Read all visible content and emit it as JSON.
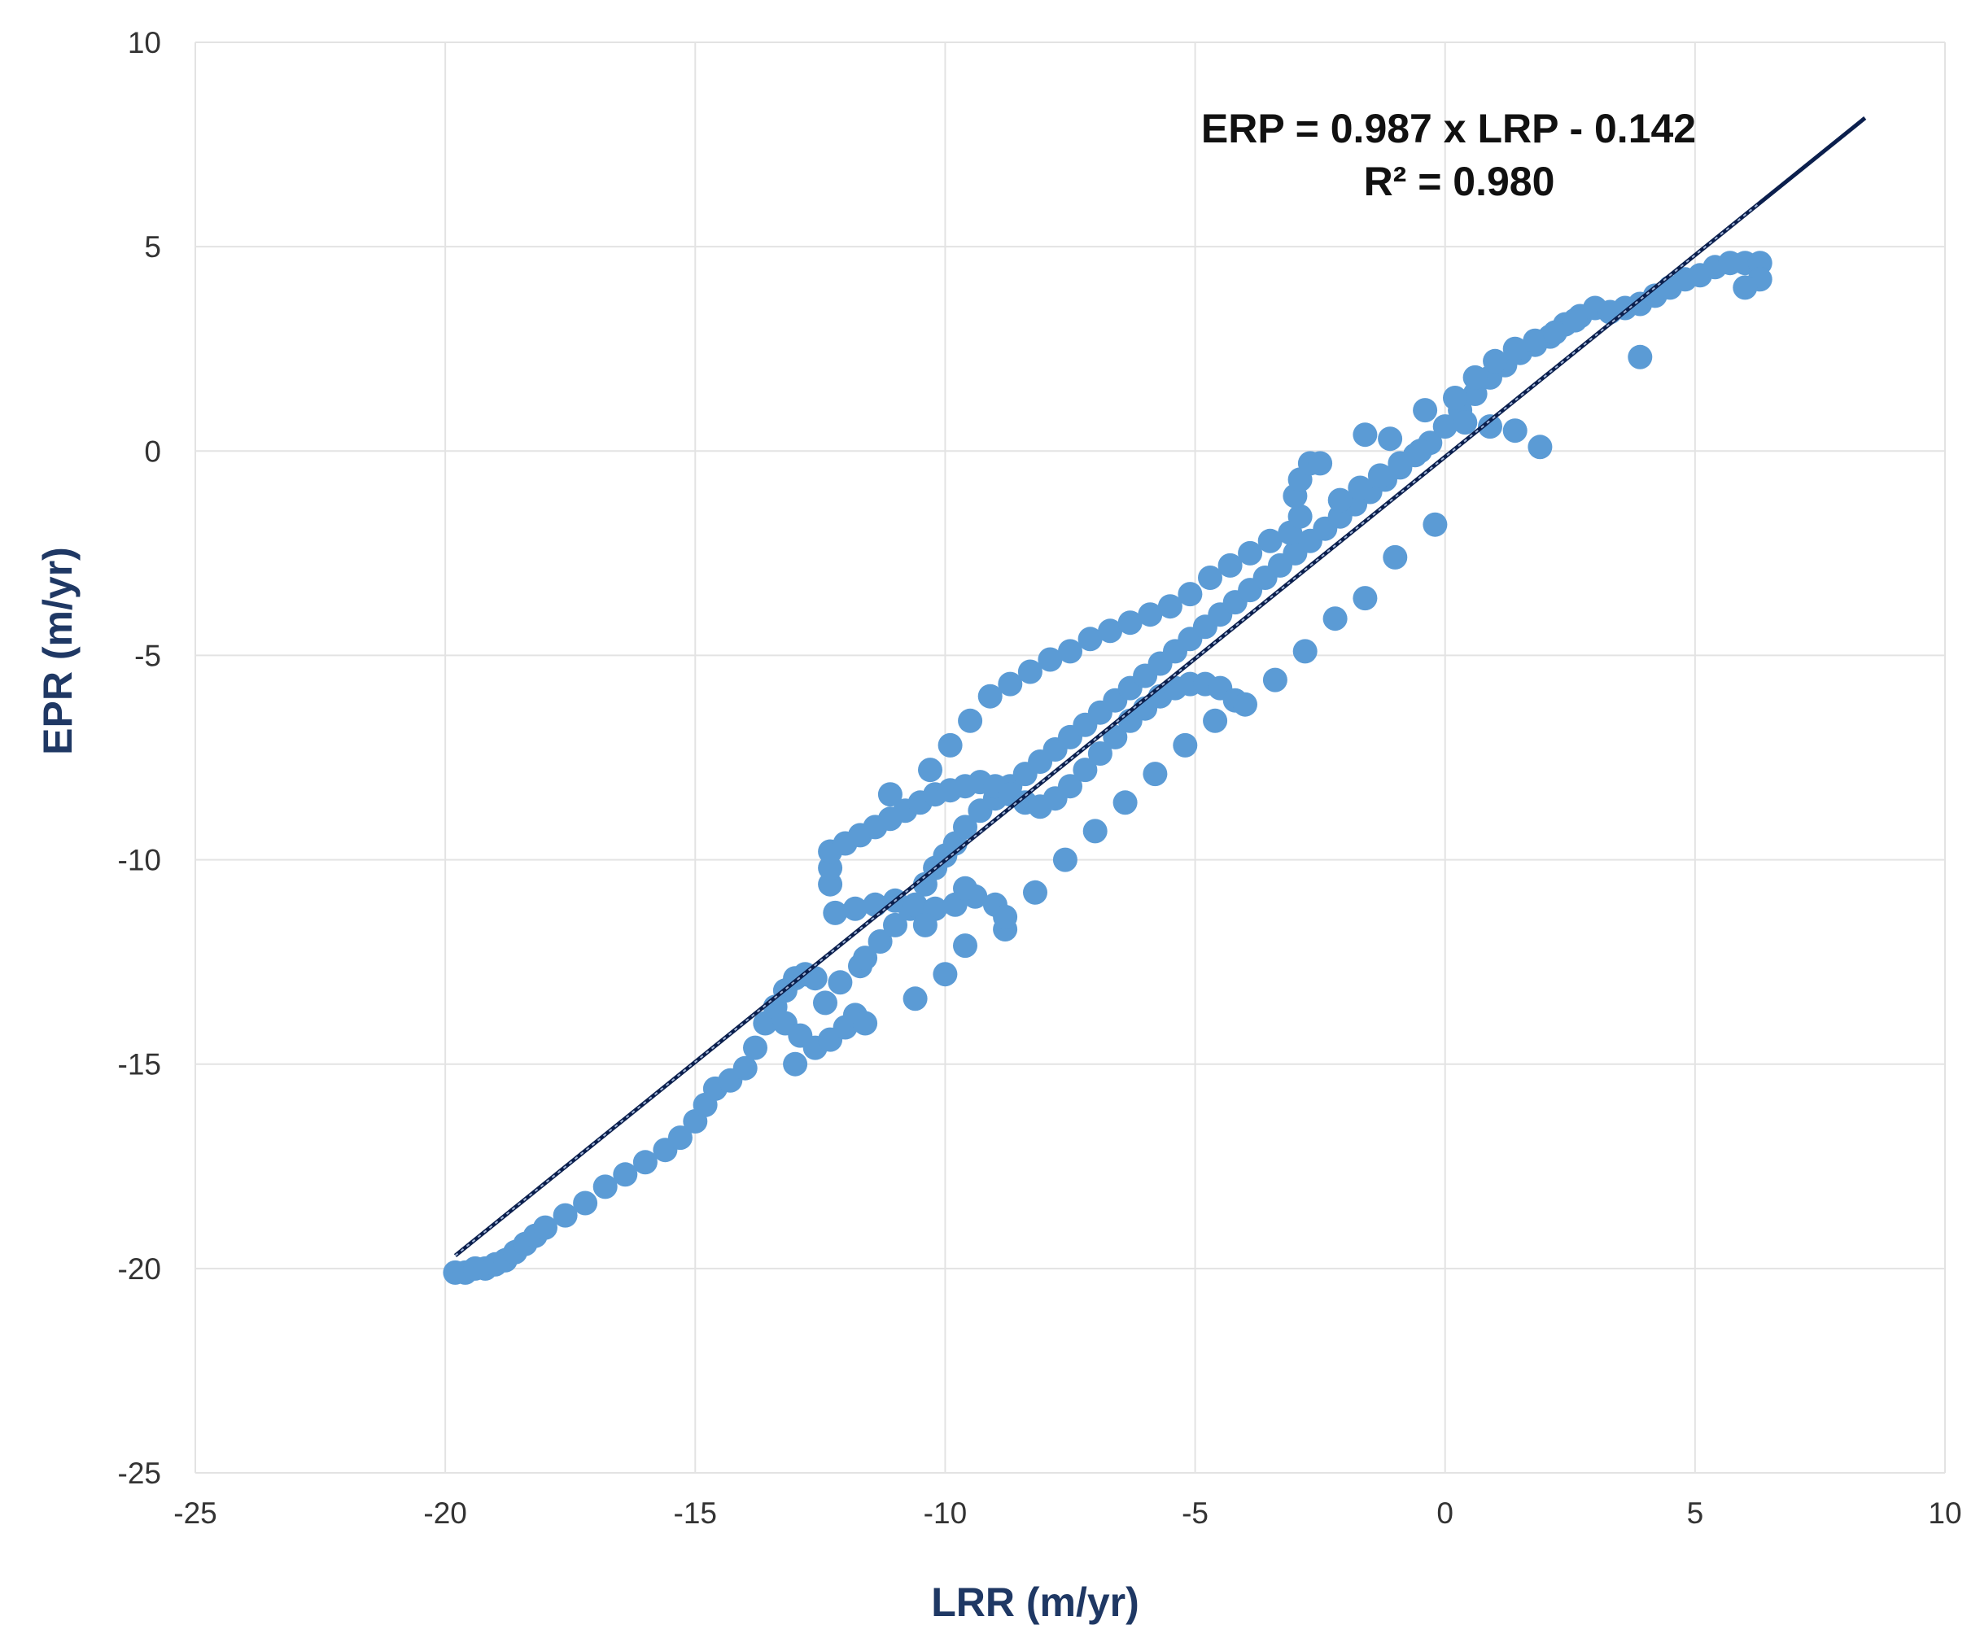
{
  "chart_data": {
    "type": "scatter",
    "title": "",
    "xlabel": "LRR (m/yr)",
    "ylabel": "EPR (m/yr)",
    "xlim": [
      -25,
      10
    ],
    "ylim": [
      -25,
      10
    ],
    "x_ticks": [
      -25,
      -20,
      -15,
      -10,
      -5,
      0,
      5,
      10
    ],
    "y_ticks": [
      -25,
      -20,
      -15,
      -10,
      -5,
      0,
      5,
      10
    ],
    "grid": true,
    "legend": "none",
    "annotation": {
      "equation": "ERP = 0.987 x LRP - 0.142",
      "r_squared": "R² = 0.980"
    },
    "trendline": {
      "slope": 0.987,
      "intercept": -0.142,
      "x_range": [
        -19.8,
        8.4
      ]
    },
    "colors": {
      "points": "#5b9bd5",
      "trendline": "#0b1f4d",
      "axis_title": "#1f3864",
      "grid": "#e3e3e3"
    },
    "series": [
      {
        "values": [
          [
            -19.8,
            -20.1
          ],
          [
            -19.6,
            -20.1
          ],
          [
            -19.4,
            -20.0
          ],
          [
            -19.2,
            -20.0
          ],
          [
            -19.0,
            -19.9
          ],
          [
            -18.8,
            -19.8
          ],
          [
            -18.6,
            -19.6
          ],
          [
            -18.4,
            -19.4
          ],
          [
            -18.2,
            -19.2
          ],
          [
            -18.0,
            -19.0
          ],
          [
            -17.6,
            -18.7
          ],
          [
            -17.2,
            -18.4
          ],
          [
            -16.8,
            -18.0
          ],
          [
            -16.4,
            -17.7
          ],
          [
            -16.0,
            -17.4
          ],
          [
            -15.6,
            -17.1
          ],
          [
            -15.3,
            -16.8
          ],
          [
            -15.0,
            -16.4
          ],
          [
            -14.8,
            -16.0
          ],
          [
            -14.6,
            -15.6
          ],
          [
            -14.3,
            -15.4
          ],
          [
            -14.0,
            -15.1
          ],
          [
            -13.8,
            -14.6
          ],
          [
            -13.6,
            -14.0
          ],
          [
            -13.4,
            -13.6
          ],
          [
            -13.2,
            -13.2
          ],
          [
            -13.0,
            -12.9
          ],
          [
            -12.8,
            -12.8
          ],
          [
            -12.6,
            -12.9
          ],
          [
            -13.2,
            -14.0
          ],
          [
            -12.9,
            -14.3
          ],
          [
            -12.6,
            -14.6
          ],
          [
            -12.3,
            -14.4
          ],
          [
            -12.0,
            -14.1
          ],
          [
            -11.8,
            -13.8
          ],
          [
            -12.4,
            -13.5
          ],
          [
            -12.1,
            -13.0
          ],
          [
            -11.7,
            -12.6
          ],
          [
            -13.0,
            -15.0
          ],
          [
            -11.6,
            -14.0
          ],
          [
            -11.6,
            -12.4
          ],
          [
            -11.3,
            -12.0
          ],
          [
            -11.0,
            -11.6
          ],
          [
            -10.7,
            -11.2
          ],
          [
            -10.4,
            -10.6
          ],
          [
            -10.2,
            -10.2
          ],
          [
            -10.0,
            -9.9
          ],
          [
            -9.8,
            -9.6
          ],
          [
            -9.6,
            -9.2
          ],
          [
            -9.3,
            -8.8
          ],
          [
            -9.0,
            -8.5
          ],
          [
            -8.7,
            -8.2
          ],
          [
            -8.4,
            -7.9
          ],
          [
            -8.1,
            -7.6
          ],
          [
            -7.8,
            -7.3
          ],
          [
            -7.5,
            -7.0
          ],
          [
            -7.2,
            -6.7
          ],
          [
            -6.9,
            -6.4
          ],
          [
            -6.6,
            -6.1
          ],
          [
            -6.3,
            -5.8
          ],
          [
            -6.0,
            -5.5
          ],
          [
            -5.7,
            -5.2
          ],
          [
            -5.4,
            -4.9
          ],
          [
            -5.1,
            -4.6
          ],
          [
            -4.8,
            -4.3
          ],
          [
            -4.5,
            -4.0
          ],
          [
            -4.2,
            -3.7
          ],
          [
            -3.9,
            -3.4
          ],
          [
            -3.6,
            -3.1
          ],
          [
            -3.3,
            -2.8
          ],
          [
            -3.0,
            -2.5
          ],
          [
            -2.7,
            -2.2
          ],
          [
            -2.4,
            -1.9
          ],
          [
            -2.1,
            -1.6
          ],
          [
            -1.8,
            -1.3
          ],
          [
            -1.5,
            -1.0
          ],
          [
            -1.2,
            -0.7
          ],
          [
            -0.9,
            -0.4
          ],
          [
            -0.6,
            -0.1
          ],
          [
            -0.3,
            0.2
          ],
          [
            0.0,
            0.6
          ],
          [
            0.3,
            1.0
          ],
          [
            0.6,
            1.4
          ],
          [
            0.9,
            1.8
          ],
          [
            1.2,
            2.1
          ],
          [
            1.5,
            2.4
          ],
          [
            1.8,
            2.6
          ],
          [
            2.1,
            2.8
          ],
          [
            2.4,
            3.1
          ],
          [
            2.7,
            3.3
          ],
          [
            3.0,
            3.5
          ],
          [
            3.3,
            3.4
          ],
          [
            3.6,
            3.5
          ],
          [
            3.9,
            3.6
          ],
          [
            4.2,
            3.8
          ],
          [
            4.5,
            4.0
          ],
          [
            4.8,
            4.2
          ],
          [
            5.1,
            4.3
          ],
          [
            5.4,
            4.5
          ],
          [
            5.7,
            4.6
          ],
          [
            6.0,
            4.6
          ],
          [
            6.3,
            4.6
          ],
          [
            6.3,
            4.2
          ],
          [
            6.0,
            4.0
          ],
          [
            -12.3,
            -10.6
          ],
          [
            -12.3,
            -10.2
          ],
          [
            -12.3,
            -9.8
          ],
          [
            -12.0,
            -9.6
          ],
          [
            -11.7,
            -9.4
          ],
          [
            -11.4,
            -9.2
          ],
          [
            -11.1,
            -9.0
          ],
          [
            -10.8,
            -8.8
          ],
          [
            -10.5,
            -8.6
          ],
          [
            -10.2,
            -8.4
          ],
          [
            -9.9,
            -8.3
          ],
          [
            -9.6,
            -8.2
          ],
          [
            -9.3,
            -8.1
          ],
          [
            -9.0,
            -8.2
          ],
          [
            -8.7,
            -8.4
          ],
          [
            -8.4,
            -8.6
          ],
          [
            -8.1,
            -8.7
          ],
          [
            -7.8,
            -8.5
          ],
          [
            -7.5,
            -8.2
          ],
          [
            -7.2,
            -7.8
          ],
          [
            -6.9,
            -7.4
          ],
          [
            -6.6,
            -7.0
          ],
          [
            -6.3,
            -6.6
          ],
          [
            -6.0,
            -6.3
          ],
          [
            -5.7,
            -6.0
          ],
          [
            -5.4,
            -5.8
          ],
          [
            -5.1,
            -5.7
          ],
          [
            -4.8,
            -5.7
          ],
          [
            -4.5,
            -5.8
          ],
          [
            -4.2,
            -6.1
          ],
          [
            -11.1,
            -8.4
          ],
          [
            -10.3,
            -7.8
          ],
          [
            -9.9,
            -7.2
          ],
          [
            -9.5,
            -6.6
          ],
          [
            -9.1,
            -6.0
          ],
          [
            -8.7,
            -5.7
          ],
          [
            -8.3,
            -5.4
          ],
          [
            -7.9,
            -5.1
          ],
          [
            -7.5,
            -4.9
          ],
          [
            -7.1,
            -4.6
          ],
          [
            -6.7,
            -4.4
          ],
          [
            -6.3,
            -4.2
          ],
          [
            -5.9,
            -4.0
          ],
          [
            -5.5,
            -3.8
          ],
          [
            -5.1,
            -3.5
          ],
          [
            -4.7,
            -3.1
          ],
          [
            -4.3,
            -2.8
          ],
          [
            -3.9,
            -2.5
          ],
          [
            -3.5,
            -2.2
          ],
          [
            -3.1,
            -2.0
          ],
          [
            -2.9,
            -1.6
          ],
          [
            -3.0,
            -1.1
          ],
          [
            -2.9,
            -0.7
          ],
          [
            -2.7,
            -0.3
          ],
          [
            -2.5,
            -0.3
          ],
          [
            -2.1,
            -1.2
          ],
          [
            -1.7,
            -0.9
          ],
          [
            -1.3,
            -0.6
          ],
          [
            -0.9,
            -0.3
          ],
          [
            -0.5,
            0.0
          ],
          [
            -1.6,
            0.4
          ],
          [
            -1.1,
            0.3
          ],
          [
            -0.4,
            1.0
          ],
          [
            0.2,
            1.3
          ],
          [
            0.6,
            1.8
          ],
          [
            1.0,
            2.2
          ],
          [
            1.4,
            2.5
          ],
          [
            1.8,
            2.7
          ],
          [
            2.2,
            2.9
          ],
          [
            2.6,
            3.2
          ],
          [
            -10.6,
            -13.4
          ],
          [
            -10.0,
            -12.8
          ],
          [
            -9.6,
            -12.1
          ],
          [
            -8.8,
            -11.7
          ],
          [
            -8.2,
            -10.8
          ],
          [
            -7.6,
            -10.0
          ],
          [
            -7.0,
            -9.3
          ],
          [
            -6.4,
            -8.6
          ],
          [
            -5.8,
            -7.9
          ],
          [
            -5.2,
            -7.2
          ],
          [
            -4.6,
            -6.6
          ],
          [
            -4.0,
            -6.2
          ],
          [
            -3.4,
            -5.6
          ],
          [
            -2.8,
            -4.9
          ],
          [
            -2.2,
            -4.1
          ],
          [
            -1.6,
            -3.6
          ],
          [
            -1.0,
            -2.6
          ],
          [
            -0.2,
            -1.8
          ],
          [
            0.4,
            0.7
          ],
          [
            0.9,
            0.6
          ],
          [
            1.4,
            0.5
          ],
          [
            1.9,
            0.1
          ],
          [
            3.9,
            2.3
          ],
          [
            -12.2,
            -11.3
          ],
          [
            -11.8,
            -11.2
          ],
          [
            -11.4,
            -11.1
          ],
          [
            -11.0,
            -11.0
          ],
          [
            -10.6,
            -11.1
          ],
          [
            -10.2,
            -11.2
          ],
          [
            -9.8,
            -11.1
          ],
          [
            -9.4,
            -10.9
          ],
          [
            -9.0,
            -11.1
          ],
          [
            -8.8,
            -11.4
          ],
          [
            -10.4,
            -11.6
          ],
          [
            -9.6,
            -10.7
          ]
        ]
      }
    ]
  }
}
